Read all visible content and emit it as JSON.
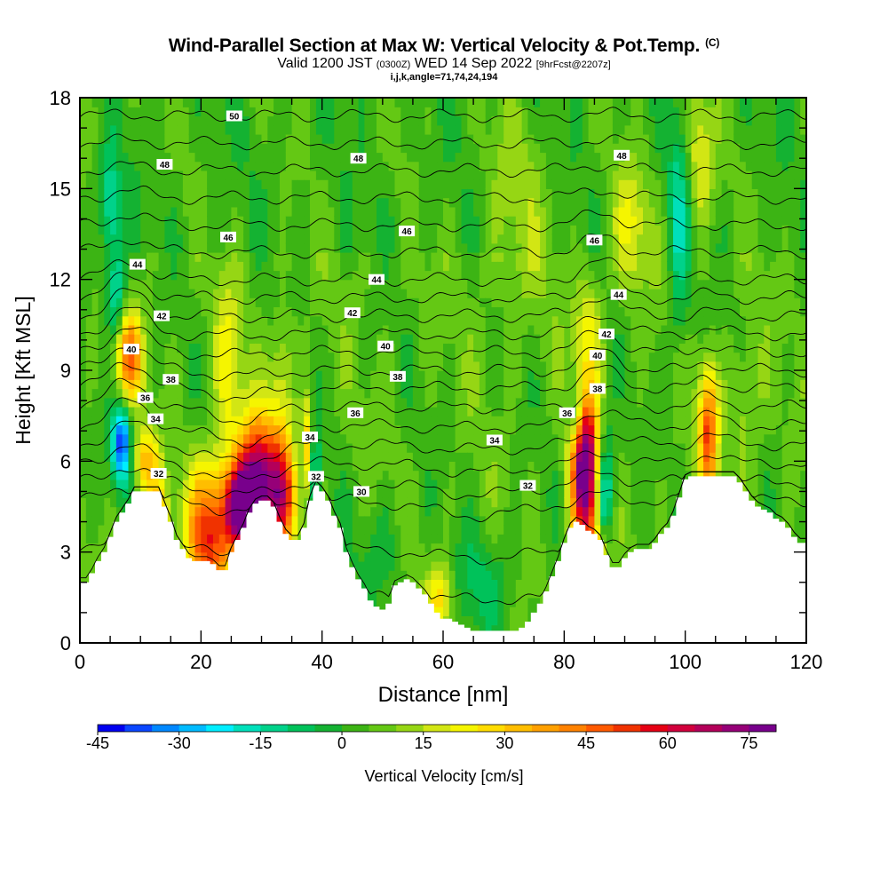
{
  "title": {
    "main": "Wind-Parallel Section at Max W: Vertical Velocity & Pot.Temp.",
    "copyright": "(C)",
    "valid_prefix": "Valid 1200 JST",
    "valid_utc": "(0300Z)",
    "valid_date": "WED 14 Sep 2022",
    "forecast": "[9hrFcst@2207z]",
    "indices": "i,j,k,angle=71,74,24,194"
  },
  "colors": {
    "terrain": "#ffffff",
    "isentrope": "#000000",
    "contour_label_bg": "#ffffff"
  },
  "chart_data": {
    "type": "heatmap",
    "xlabel": "Distance [nm]",
    "ylabel": "Height [Kft MSL]",
    "xlim": [
      0,
      120
    ],
    "ylim": [
      0,
      18
    ],
    "xticks": [
      0,
      20,
      40,
      60,
      80,
      100,
      120
    ],
    "yticks": [
      0,
      3,
      6,
      9,
      12,
      15,
      18
    ],
    "colorbar": {
      "label": "Vertical Velocity [cm/s]",
      "ticks": [
        -45,
        -30,
        -15,
        0,
        15,
        30,
        45,
        60,
        75
      ],
      "levels": [
        -45,
        -40,
        -35,
        -30,
        -25,
        -20,
        -15,
        -10,
        -5,
        0,
        5,
        10,
        15,
        20,
        25,
        30,
        35,
        40,
        45,
        50,
        55,
        60,
        65,
        70,
        75,
        80
      ],
      "colors": [
        "#0000f0",
        "#0a46ff",
        "#0088ff",
        "#00bbff",
        "#00eeff",
        "#00e0bb",
        "#00d28a",
        "#00c25a",
        "#14b232",
        "#3cb414",
        "#64c814",
        "#96d614",
        "#d2e614",
        "#f5f500",
        "#ffdc00",
        "#ffbe00",
        "#ffa000",
        "#ff8200",
        "#ff5a00",
        "#f03200",
        "#e60014",
        "#d2003c",
        "#b4005a",
        "#960078",
        "#78008c"
      ]
    },
    "terrain": {
      "x": [
        0,
        1,
        2,
        3,
        4,
        5,
        6,
        7,
        8,
        9,
        10,
        11,
        12,
        13,
        14,
        15,
        16,
        17,
        18,
        19,
        20,
        21,
        22,
        23,
        24,
        25,
        26,
        27,
        28,
        29,
        30,
        31,
        32,
        33,
        34,
        35,
        36,
        37,
        38,
        39,
        40,
        41,
        42,
        43,
        44,
        45,
        46,
        47,
        48,
        49,
        50,
        51,
        52,
        53,
        54,
        55,
        56,
        57,
        58,
        59,
        60,
        61,
        62,
        63,
        64,
        65,
        66,
        67,
        68,
        69,
        70,
        71,
        72,
        73,
        74,
        75,
        76,
        77,
        78,
        79,
        80,
        81,
        82,
        83,
        84,
        85,
        86,
        87,
        88,
        89,
        90,
        91,
        92,
        93,
        94,
        95,
        96,
        97,
        98,
        99,
        100,
        101,
        102,
        103,
        104,
        105,
        106,
        107,
        108,
        109,
        110,
        111,
        112,
        113,
        114,
        115,
        116,
        117,
        118,
        119,
        120
      ],
      "height": [
        2.0,
        2.0,
        2.3,
        2.7,
        3.0,
        3.5,
        4.0,
        4.3,
        4.6,
        5.0,
        5.0,
        5.0,
        5.0,
        5.0,
        4.5,
        4.0,
        3.4,
        3.1,
        2.8,
        2.7,
        2.7,
        2.7,
        2.6,
        2.4,
        2.4,
        3.0,
        3.4,
        3.8,
        4.3,
        4.6,
        4.7,
        4.7,
        4.5,
        4.0,
        3.6,
        3.4,
        3.4,
        3.8,
        4.7,
        5.2,
        5.0,
        4.7,
        4.2,
        3.8,
        3.0,
        2.5,
        2.1,
        1.8,
        1.4,
        1.2,
        1.1,
        1.3,
        1.9,
        2.0,
        2.1,
        2.0,
        1.8,
        1.6,
        1.3,
        1.0,
        0.8,
        0.8,
        0.7,
        0.6,
        0.5,
        0.4,
        0.4,
        0.4,
        0.4,
        0.4,
        0.4,
        0.4,
        0.4,
        0.5,
        0.7,
        1.0,
        1.3,
        1.7,
        2.2,
        2.7,
        3.3,
        3.8,
        4.0,
        3.9,
        3.7,
        3.6,
        3.4,
        2.9,
        2.5,
        2.5,
        2.8,
        3.0,
        3.1,
        3.1,
        3.1,
        3.3,
        3.6,
        3.8,
        4.2,
        4.8,
        5.4,
        5.5,
        5.5,
        5.5,
        5.5,
        5.5,
        5.5,
        5.5,
        5.5,
        5.3,
        5.0,
        4.7,
        4.5,
        4.4,
        4.3,
        4.1,
        4.0,
        3.8,
        3.5,
        3.3,
        3.3
      ]
    },
    "cells": {
      "positive": [
        {
          "x": 8,
          "y": 9.5,
          "amp": 40,
          "sx": 1.6,
          "sy": 1.0
        },
        {
          "x": 11,
          "y": 6.0,
          "amp": 26,
          "sx": 1.4,
          "sy": 0.8
        },
        {
          "x": 13,
          "y": 4.3,
          "amp": 22,
          "sx": 1.1,
          "sy": 0.8
        },
        {
          "x": 21.5,
          "y": 3.6,
          "amp": 50,
          "sx": 2.6,
          "sy": 1.6
        },
        {
          "x": 27.0,
          "y": 4.4,
          "amp": 78,
          "sx": 2.0,
          "sy": 0.9
        },
        {
          "x": 29.5,
          "y": 5.6,
          "amp": 62,
          "sx": 2.6,
          "sy": 1.3
        },
        {
          "x": 33.5,
          "y": 4.7,
          "amp": 42,
          "sx": 1.6,
          "sy": 1.2
        },
        {
          "x": 37.8,
          "y": 6.6,
          "amp": 26,
          "sx": 0.8,
          "sy": 1.1
        },
        {
          "x": 24.5,
          "y": 9.2,
          "amp": 18,
          "sx": 1.6,
          "sy": 1.8
        },
        {
          "x": 33.5,
          "y": 8.6,
          "amp": 14,
          "sx": 1.3,
          "sy": 1.6
        },
        {
          "x": 59.5,
          "y": 1.5,
          "amp": 22,
          "sx": 1.6,
          "sy": 0.9
        },
        {
          "x": 83.5,
          "y": 5.7,
          "amp": 85,
          "sx": 1.6,
          "sy": 1.7
        },
        {
          "x": 85.5,
          "y": 3.0,
          "amp": 28,
          "sx": 1.4,
          "sy": 0.7
        },
        {
          "x": 84.0,
          "y": 10.4,
          "amp": 16,
          "sx": 1.6,
          "sy": 1.2
        },
        {
          "x": 91.0,
          "y": 13.8,
          "amp": 17,
          "sx": 2.2,
          "sy": 1.4
        },
        {
          "x": 103.8,
          "y": 7.0,
          "amp": 45,
          "sx": 1.1,
          "sy": 1.5
        },
        {
          "x": 102.5,
          "y": 16.0,
          "amp": 18,
          "sx": 1.6,
          "sy": 1.6
        },
        {
          "x": 110.0,
          "y": 7.8,
          "amp": 10,
          "sx": 2.0,
          "sy": 1.6
        },
        {
          "x": 72.0,
          "y": 14.2,
          "amp": 9,
          "sx": 4.0,
          "sy": 2.5
        }
      ],
      "negative": [
        {
          "x": 6.8,
          "y": 6.6,
          "amp": -45,
          "sx": 1.1,
          "sy": 0.9
        },
        {
          "x": 6.0,
          "y": 11.5,
          "amp": -25,
          "sx": 1.1,
          "sy": 1.3
        },
        {
          "x": 5.0,
          "y": 14.6,
          "amp": -20,
          "sx": 1.2,
          "sy": 1.2
        },
        {
          "x": 38.8,
          "y": 6.0,
          "amp": -32,
          "sx": 0.5,
          "sy": 1.1
        },
        {
          "x": 86.5,
          "y": 5.0,
          "amp": -32,
          "sx": 1.2,
          "sy": 1.5
        },
        {
          "x": 82.0,
          "y": 7.5,
          "amp": -22,
          "sx": 0.9,
          "sy": 0.8
        },
        {
          "x": 99.0,
          "y": 13.5,
          "amp": -18,
          "sx": 1.2,
          "sy": 2.5
        },
        {
          "x": 66.5,
          "y": 2.0,
          "amp": -10,
          "sx": 4.0,
          "sy": 1.2
        },
        {
          "x": 50.0,
          "y": 3.0,
          "amp": -7,
          "sx": 3.0,
          "sy": 1.2
        }
      ]
    },
    "isentropes": {
      "levels": [
        30,
        31,
        32,
        33,
        34,
        35,
        36,
        37,
        38,
        39,
        40,
        41,
        42,
        43,
        44,
        45,
        46,
        47,
        48,
        49,
        50
      ],
      "labeled": [
        {
          "value": "50",
          "x": 25.5,
          "y": 17.4
        },
        {
          "value": "48",
          "x": 14.0,
          "y": 15.8
        },
        {
          "value": "48",
          "x": 46.0,
          "y": 16.0
        },
        {
          "value": "48",
          "x": 89.5,
          "y": 16.1
        },
        {
          "value": "46",
          "x": 24.5,
          "y": 13.4
        },
        {
          "value": "46",
          "x": 54.0,
          "y": 13.6
        },
        {
          "value": "46",
          "x": 85.0,
          "y": 13.3
        },
        {
          "value": "44",
          "x": 9.5,
          "y": 12.5
        },
        {
          "value": "44",
          "x": 49.0,
          "y": 12.0
        },
        {
          "value": "44",
          "x": 89.0,
          "y": 11.5
        },
        {
          "value": "42",
          "x": 13.5,
          "y": 10.8
        },
        {
          "value": "42",
          "x": 45.0,
          "y": 10.9
        },
        {
          "value": "42",
          "x": 87.0,
          "y": 10.2
        },
        {
          "value": "40",
          "x": 8.5,
          "y": 9.7
        },
        {
          "value": "40",
          "x": 50.5,
          "y": 9.8
        },
        {
          "value": "40",
          "x": 85.5,
          "y": 9.5
        },
        {
          "value": "38",
          "x": 15.0,
          "y": 8.7
        },
        {
          "value": "38",
          "x": 52.5,
          "y": 8.8
        },
        {
          "value": "38",
          "x": 85.5,
          "y": 8.4
        },
        {
          "value": "36",
          "x": 10.8,
          "y": 8.1
        },
        {
          "value": "36",
          "x": 45.5,
          "y": 7.6
        },
        {
          "value": "36",
          "x": 80.5,
          "y": 7.6
        },
        {
          "value": "34",
          "x": 12.5,
          "y": 7.4
        },
        {
          "value": "34",
          "x": 38.0,
          "y": 6.8
        },
        {
          "value": "34",
          "x": 68.5,
          "y": 6.7
        },
        {
          "value": "32",
          "x": 13.0,
          "y": 5.6
        },
        {
          "value": "32",
          "x": 39.0,
          "y": 5.5
        },
        {
          "value": "32",
          "x": 74.0,
          "y": 5.2
        },
        {
          "value": "30",
          "x": 46.5,
          "y": 5.0
        }
      ]
    }
  }
}
